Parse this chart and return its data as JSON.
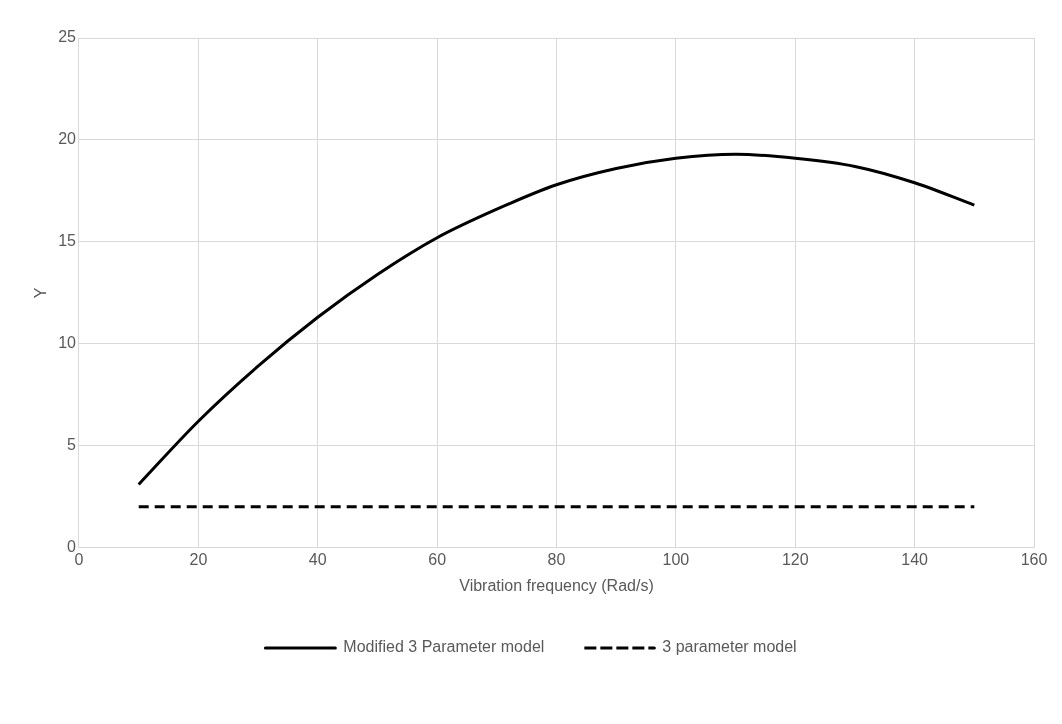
{
  "chart_data": {
    "type": "line",
    "xlabel": "Vibration frequency (Rad/s)",
    "ylabel": "Y",
    "xlim": [
      0,
      160
    ],
    "xticks": [
      0,
      20,
      40,
      60,
      80,
      100,
      120,
      140,
      160
    ],
    "ylim": [
      0,
      25
    ],
    "yticks": [
      0,
      5,
      10,
      15,
      20,
      25
    ],
    "grid": true,
    "legend": "bottom",
    "marker": "none",
    "series": [
      {
        "name": "Modified 3 Parameter model",
        "color": "#000000",
        "line_style": "solid",
        "x": [
          10,
          20,
          30,
          40,
          50,
          60,
          70,
          80,
          90,
          100,
          110,
          120,
          130,
          140,
          150
        ],
        "values": [
          3.1,
          6.2,
          8.9,
          11.3,
          13.4,
          15.2,
          16.6,
          17.8,
          18.6,
          19.1,
          19.3,
          19.1,
          18.7,
          17.9,
          16.8
        ]
      },
      {
        "name": "3 parameter model",
        "color": "#000000",
        "line_style": "dashed",
        "x": [
          10,
          150
        ],
        "values": [
          2,
          2
        ]
      }
    ]
  }
}
